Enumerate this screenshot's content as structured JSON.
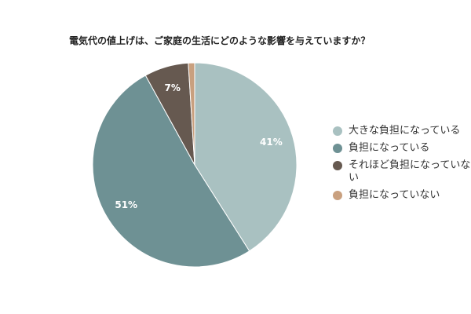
{
  "chart_data": {
    "type": "pie",
    "title": "電気代の値上げは、ご家庭の生活にどのような影響を与えていますか？",
    "categories": [
      "大きな負担になっている",
      "負担になっている",
      "それほど負担になっていない",
      "負担になっていない"
    ],
    "values": [
      41,
      51,
      7,
      1
    ],
    "value_labels": [
      "41%",
      "51%",
      "7%",
      null
    ],
    "colors": [
      "#a9c1c1",
      "#6e9194",
      "#665950",
      "#c9a07f"
    ]
  }
}
